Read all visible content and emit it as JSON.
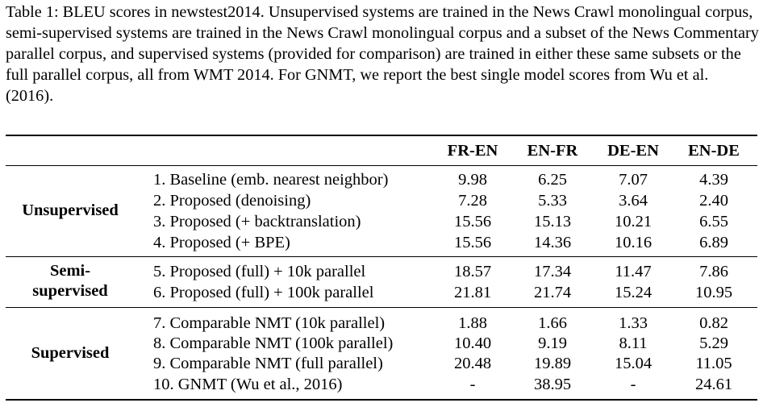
{
  "caption": "Table 1: BLEU scores in newstest2014. Unsupervised systems are trained in the News Crawl monolingual corpus, semi-supervised systems are trained in the News Crawl monolingual corpus and a subset of the News Commentary parallel corpus, and supervised systems (provided for comparison) are trained in either these same subsets or the full parallel corpus, all from WMT 2014. For GNMT, we report the best single model scores from Wu et al. (2016).",
  "columns": [
    "FR-EN",
    "EN-FR",
    "DE-EN",
    "EN-DE"
  ],
  "groups": [
    {
      "name_lines": [
        "Unsupervised"
      ],
      "rows": [
        {
          "label": "1. Baseline (emb. nearest neighbor)",
          "values": [
            "9.98",
            "6.25",
            "7.07",
            "4.39"
          ]
        },
        {
          "label": "2. Proposed (denoising)",
          "values": [
            "7.28",
            "5.33",
            "3.64",
            "2.40"
          ]
        },
        {
          "label": "3. Proposed (+ backtranslation)",
          "values": [
            "15.56",
            "15.13",
            "10.21",
            "6.55"
          ]
        },
        {
          "label": "4. Proposed (+ BPE)",
          "values": [
            "15.56",
            "14.36",
            "10.16",
            "6.89"
          ]
        }
      ]
    },
    {
      "name_lines": [
        "Semi-",
        "supervised"
      ],
      "rows": [
        {
          "label": "5. Proposed (full) + 10k parallel",
          "values": [
            "18.57",
            "17.34",
            "11.47",
            "7.86"
          ]
        },
        {
          "label": "6. Proposed (full) + 100k parallel",
          "values": [
            "21.81",
            "21.74",
            "15.24",
            "10.95"
          ]
        }
      ]
    },
    {
      "name_lines": [
        "Supervised"
      ],
      "rows": [
        {
          "label": "7. Comparable NMT (10k parallel)",
          "values": [
            "1.88",
            "1.66",
            "1.33",
            "0.82"
          ]
        },
        {
          "label": "8. Comparable NMT (100k parallel)",
          "values": [
            "10.40",
            "9.19",
            "8.11",
            "5.29"
          ]
        },
        {
          "label": "9. Comparable NMT (full parallel)",
          "values": [
            "20.48",
            "19.89",
            "15.04",
            "11.05"
          ]
        },
        {
          "label": "10. GNMT (Wu et al., 2016)",
          "values": [
            "-",
            "38.95",
            "-",
            "24.61"
          ]
        }
      ]
    }
  ]
}
